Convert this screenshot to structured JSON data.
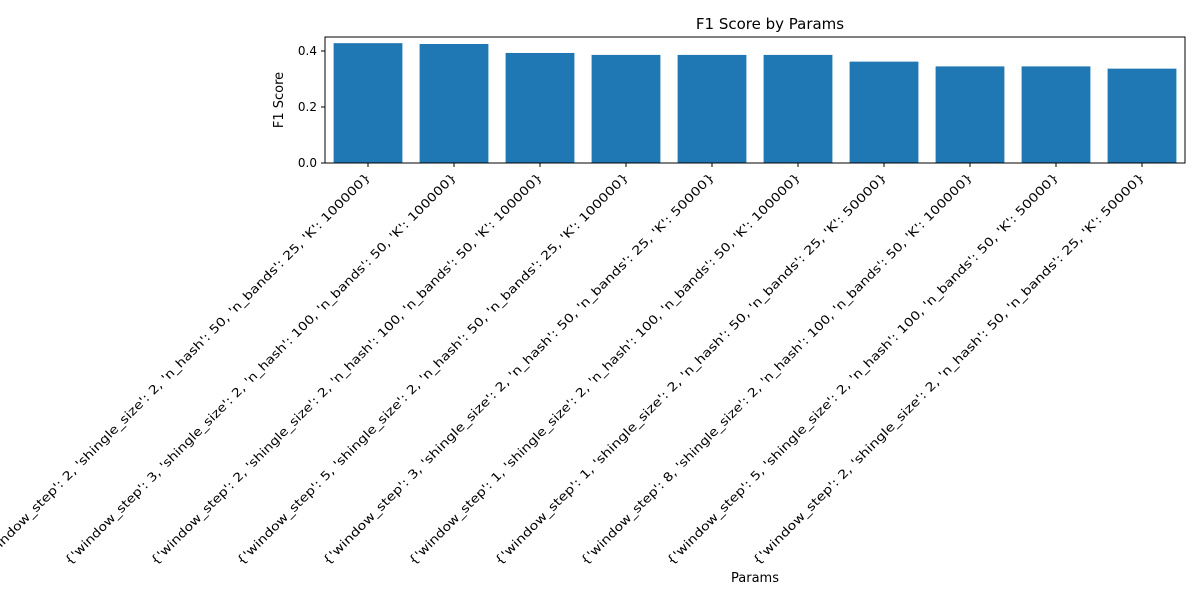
{
  "chart_data": {
    "type": "bar",
    "title": "F1 Score by Params",
    "xlabel": "Params",
    "ylabel": "F1 Score",
    "ylim": [
      0,
      0.45
    ],
    "yticks": [
      "0.0",
      "0.2",
      "0.4"
    ],
    "bar_color": "#1f77b4",
    "grid": false,
    "categories": [
      "{'window_step': 2, 'shingle_size': 2, 'n_hash': 50, 'n_bands': 25, 'K': 100000}",
      "{'window_step': 3, 'shingle_size': 2, 'n_hash': 100, 'n_bands': 50, 'K': 100000}",
      "{'window_step': 2, 'shingle_size': 2, 'n_hash': 100, 'n_bands': 50, 'K': 100000}",
      "{'window_step': 5, 'shingle_size': 2, 'n_hash': 50, 'n_bands': 25, 'K': 100000}",
      "{'window_step': 3, 'shingle_size': 2, 'n_hash': 50, 'n_bands': 25, 'K': 50000}",
      "{'window_step': 1, 'shingle_size': 2, 'n_hash': 100, 'n_bands': 50, 'K': 100000}",
      "{'window_step': 1, 'shingle_size': 2, 'n_hash': 50, 'n_bands': 25, 'K': 50000}",
      "{'window_step': 8, 'shingle_size': 2, 'n_hash': 100, 'n_bands': 50, 'K': 100000}",
      "{'window_step': 5, 'shingle_size': 2, 'n_hash': 100, 'n_bands': 50, 'K': 50000}",
      "{'window_step': 2, 'shingle_size': 2, 'n_hash': 50, 'n_bands': 25, 'K': 50000}"
    ],
    "values": [
      0.428,
      0.425,
      0.393,
      0.386,
      0.386,
      0.386,
      0.362,
      0.345,
      0.345,
      0.337
    ]
  }
}
